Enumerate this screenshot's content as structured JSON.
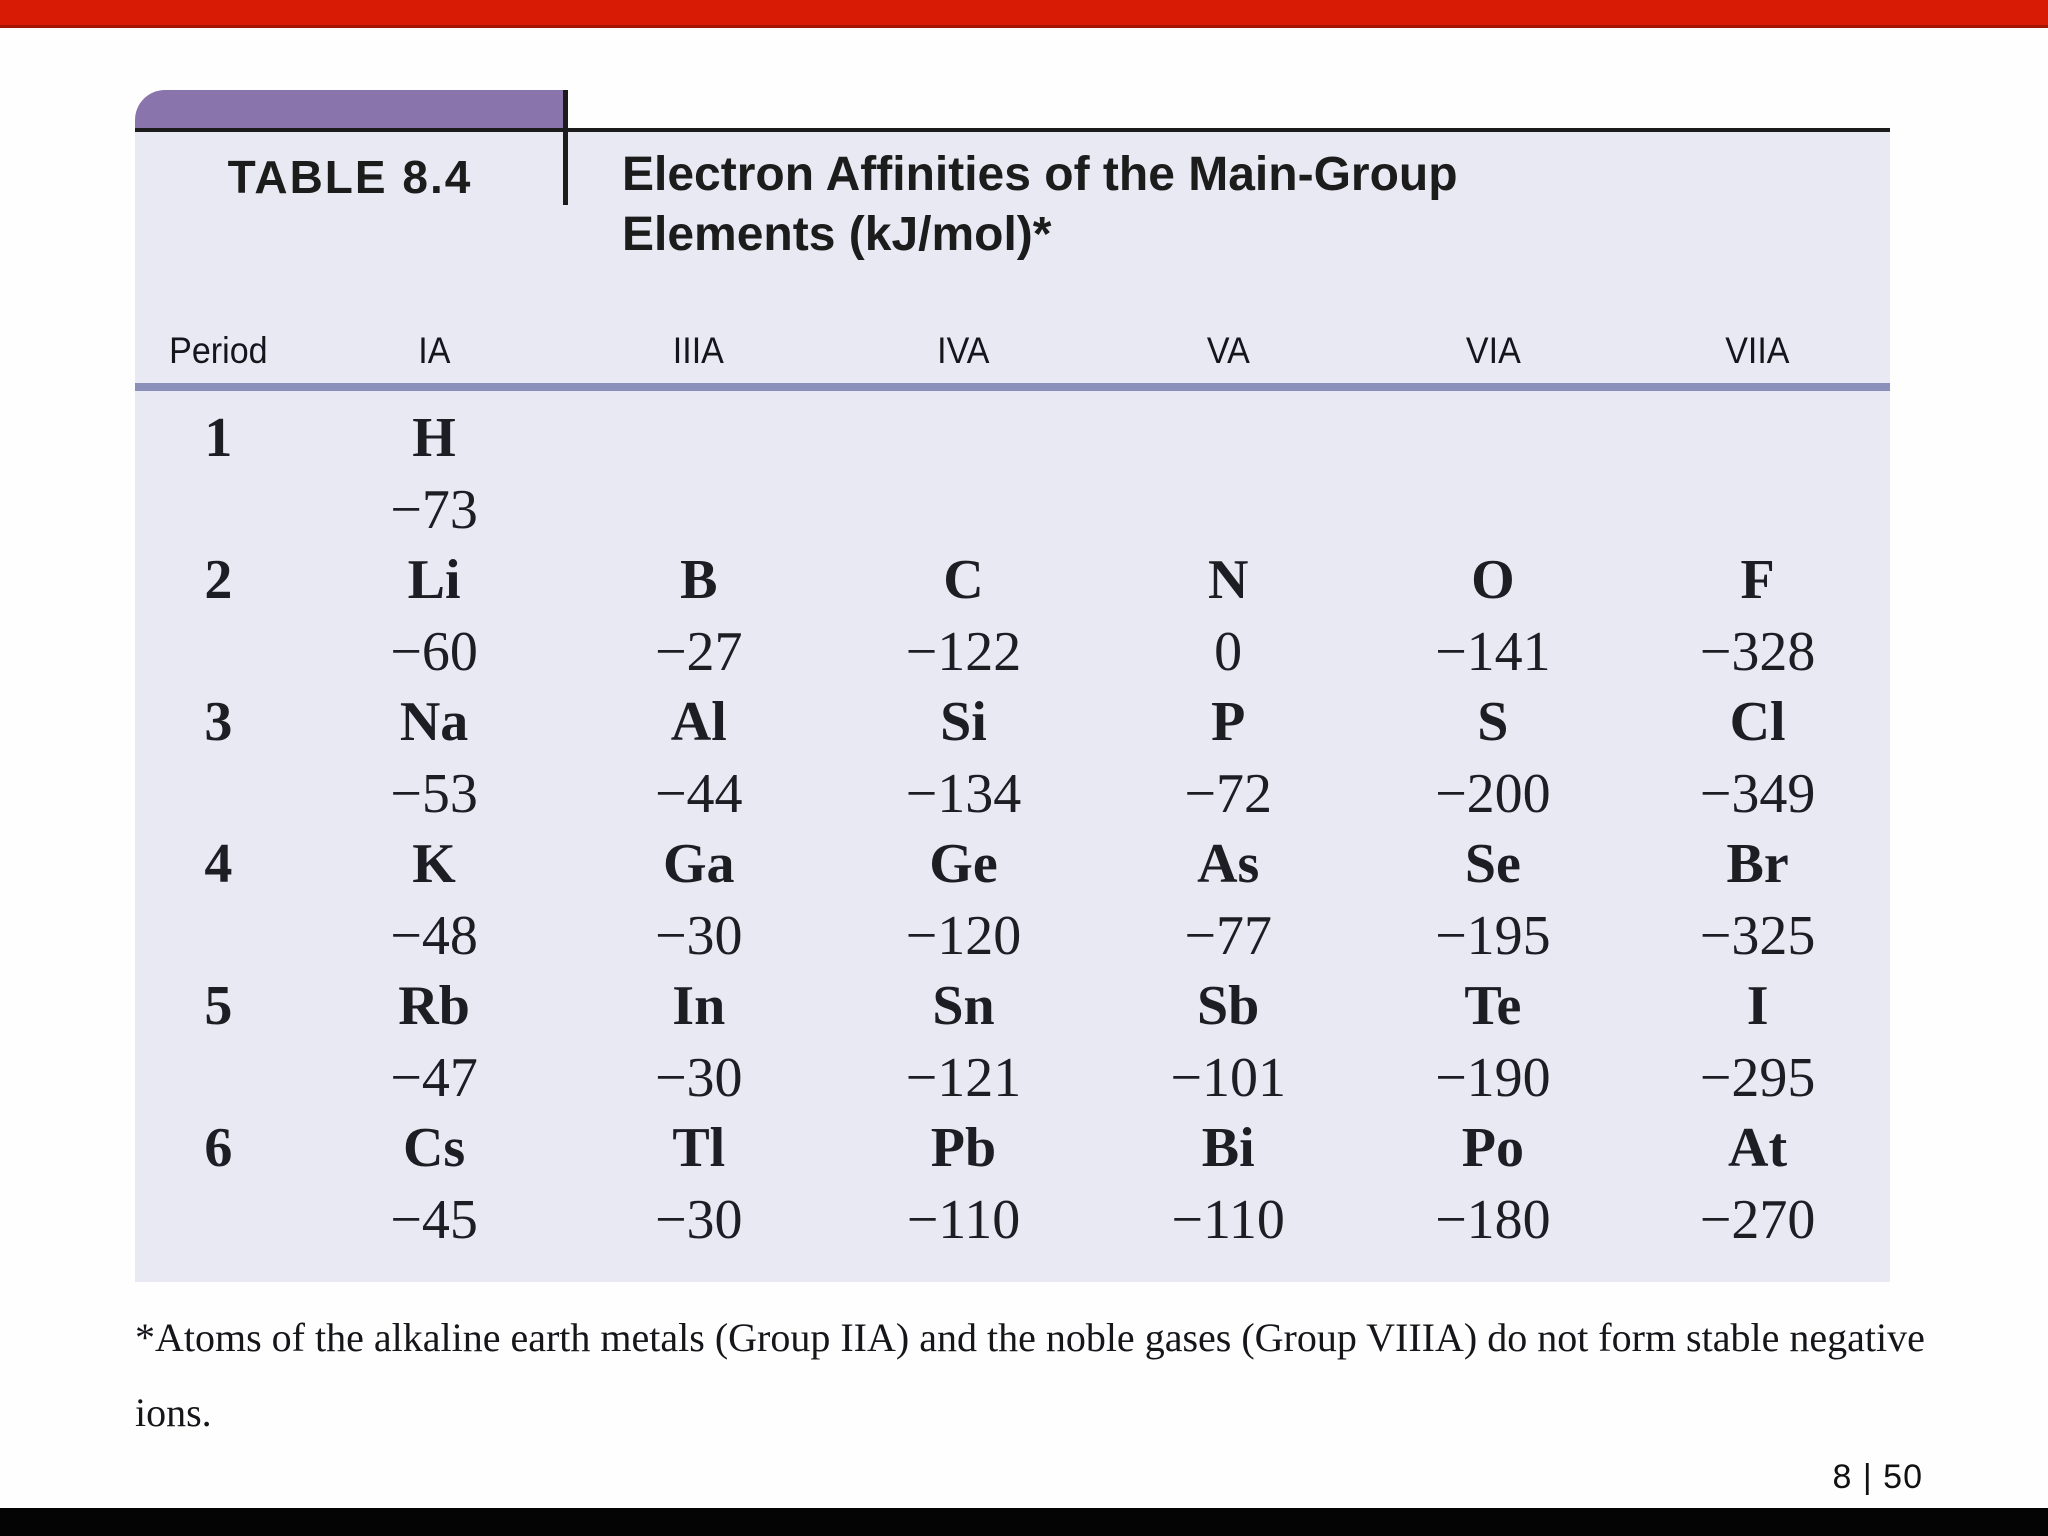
{
  "slide": {
    "page_indicator": "8 | 50"
  },
  "colors": {
    "top_bar_red": "#d71b05",
    "top_bar_edge": "#a21503",
    "tab_purple": "#8a74ac",
    "table_body_lavender": "#e9e9f3",
    "header_rule_blue": "#8b90bb",
    "line_black": "#1c1c1c",
    "bottom_bar_black": "#040404"
  },
  "table": {
    "tab_label": "TABLE 8.4",
    "title_line1": "Electron Affinities of the Main-Group",
    "title_line2": "Elements (kJ/mol)*",
    "columns": [
      "Period",
      "IA",
      "IIIA",
      "IVA",
      "VA",
      "VIA",
      "VIIA"
    ],
    "rows": [
      {
        "period": "1",
        "cells": [
          {
            "symbol": "H",
            "value": "−73"
          },
          null,
          null,
          null,
          null,
          null
        ]
      },
      {
        "period": "2",
        "cells": [
          {
            "symbol": "Li",
            "value": "−60"
          },
          {
            "symbol": "B",
            "value": "−27"
          },
          {
            "symbol": "C",
            "value": "−122"
          },
          {
            "symbol": "N",
            "value": "0"
          },
          {
            "symbol": "O",
            "value": "−141"
          },
          {
            "symbol": "F",
            "value": "−328"
          }
        ]
      },
      {
        "period": "3",
        "cells": [
          {
            "symbol": "Na",
            "value": "−53"
          },
          {
            "symbol": "Al",
            "value": "−44"
          },
          {
            "symbol": "Si",
            "value": "−134"
          },
          {
            "symbol": "P",
            "value": "−72"
          },
          {
            "symbol": "S",
            "value": "−200"
          },
          {
            "symbol": "Cl",
            "value": "−349"
          }
        ]
      },
      {
        "period": "4",
        "cells": [
          {
            "symbol": "K",
            "value": "−48"
          },
          {
            "symbol": "Ga",
            "value": "−30"
          },
          {
            "symbol": "Ge",
            "value": "−120"
          },
          {
            "symbol": "As",
            "value": "−77"
          },
          {
            "symbol": "Se",
            "value": "−195"
          },
          {
            "symbol": "Br",
            "value": "−325"
          }
        ]
      },
      {
        "period": "5",
        "cells": [
          {
            "symbol": "Rb",
            "value": "−47"
          },
          {
            "symbol": "In",
            "value": "−30"
          },
          {
            "symbol": "Sn",
            "value": "−121"
          },
          {
            "symbol": "Sb",
            "value": "−101"
          },
          {
            "symbol": "Te",
            "value": "−190"
          },
          {
            "symbol": "I",
            "value": "−295"
          }
        ]
      },
      {
        "period": "6",
        "cells": [
          {
            "symbol": "Cs",
            "value": "−45"
          },
          {
            "symbol": "Tl",
            "value": "−30"
          },
          {
            "symbol": "Pb",
            "value": "−110"
          },
          {
            "symbol": "Bi",
            "value": "−110"
          },
          {
            "symbol": "Po",
            "value": "−180"
          },
          {
            "symbol": "At",
            "value": "−270"
          }
        ]
      }
    ],
    "footnote": "*Atoms of the alkaline earth metals (Group IIA) and the noble gases (Group VIIIA) do not form stable negative ions."
  }
}
